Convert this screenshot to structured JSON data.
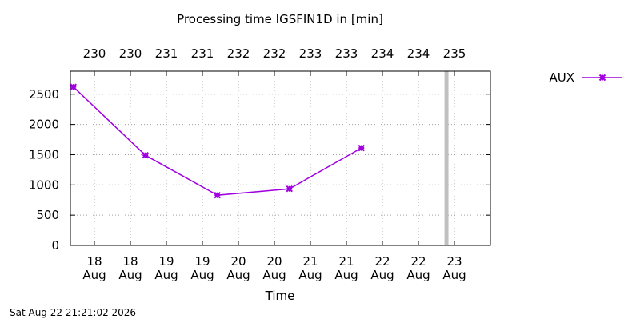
{
  "chart_data": {
    "type": "line",
    "title": "Processing time IGSFIN1D in [min]",
    "xlabel": "Time",
    "ylabel": "",
    "timestamp": "Sat Aug 22 21:21:02 2026",
    "ylim": [
      0,
      2880
    ],
    "xlim": [
      "2026-08-17T16:00",
      "2026-08-23T12:00"
    ],
    "yticks": [
      0,
      500,
      1000,
      1500,
      2000,
      2500
    ],
    "xticks_bottom": [
      {
        "x": "2026-08-18T00:00",
        "label_top": "18",
        "label_bottom": "Aug"
      },
      {
        "x": "2026-08-18T12:00",
        "label_top": "18",
        "label_bottom": "Aug"
      },
      {
        "x": "2026-08-19T00:00",
        "label_top": "19",
        "label_bottom": "Aug"
      },
      {
        "x": "2026-08-19T12:00",
        "label_top": "19",
        "label_bottom": "Aug"
      },
      {
        "x": "2026-08-20T00:00",
        "label_top": "20",
        "label_bottom": "Aug"
      },
      {
        "x": "2026-08-20T12:00",
        "label_top": "20",
        "label_bottom": "Aug"
      },
      {
        "x": "2026-08-21T00:00",
        "label_top": "21",
        "label_bottom": "Aug"
      },
      {
        "x": "2026-08-21T12:00",
        "label_top": "21",
        "label_bottom": "Aug"
      },
      {
        "x": "2026-08-22T00:00",
        "label_top": "22",
        "label_bottom": "Aug"
      },
      {
        "x": "2026-08-22T12:00",
        "label_top": "22",
        "label_bottom": "Aug"
      },
      {
        "x": "2026-08-23T00:00",
        "label_top": "23",
        "label_bottom": "Aug"
      }
    ],
    "xticks_top": [
      {
        "x": "2026-08-18T00:00",
        "label": "230"
      },
      {
        "x": "2026-08-18T12:00",
        "label": "230"
      },
      {
        "x": "2026-08-19T00:00",
        "label": "231"
      },
      {
        "x": "2026-08-19T12:00",
        "label": "231"
      },
      {
        "x": "2026-08-20T00:00",
        "label": "232"
      },
      {
        "x": "2026-08-20T12:00",
        "label": "232"
      },
      {
        "x": "2026-08-21T00:00",
        "label": "233"
      },
      {
        "x": "2026-08-21T12:00",
        "label": "233"
      },
      {
        "x": "2026-08-22T00:00",
        "label": "234"
      },
      {
        "x": "2026-08-22T12:00",
        "label": "234"
      },
      {
        "x": "2026-08-23T00:00",
        "label": "235"
      }
    ],
    "series": [
      {
        "name": "AUX",
        "color": "#a000e0",
        "marker": "x-star",
        "points": [
          {
            "x": "2026-08-17T17:00",
            "y": 2620
          },
          {
            "x": "2026-08-18T17:00",
            "y": 1490
          },
          {
            "x": "2026-08-19T17:00",
            "y": 830
          },
          {
            "x": "2026-08-20T17:00",
            "y": 935
          },
          {
            "x": "2026-08-21T17:00",
            "y": 1610
          }
        ]
      }
    ],
    "current_time_marker": {
      "x": "2026-08-22T21:21",
      "color": "#c0c0c0"
    },
    "grid": true,
    "legend_position": "top-right, outside plot"
  }
}
